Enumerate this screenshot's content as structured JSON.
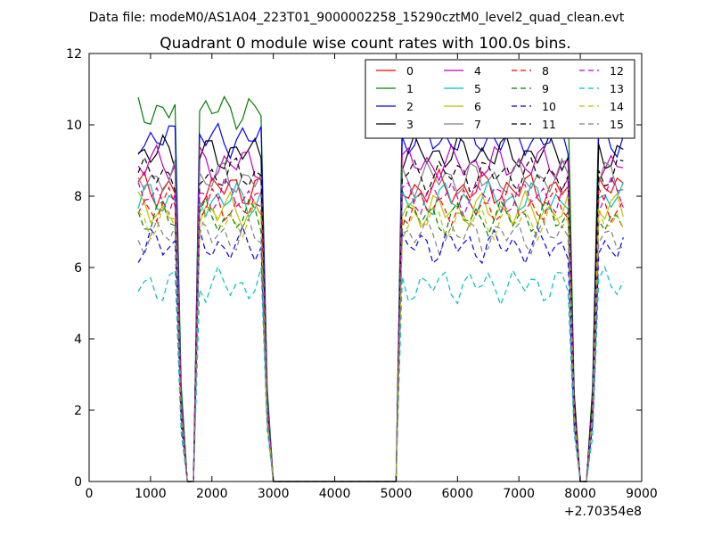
{
  "chart_data": {
    "type": "line",
    "suptitle": "Data file: modeM0/AS1A04_223T01_9000002258_15290cztM0_level2_quad_clean.evt",
    "title": "Quadrant 0 module wise count rates with 100.0s bins.",
    "xlabel": "",
    "ylabel": "",
    "x_offset_label": "+2.70354e8",
    "xlim": [
      0,
      9000
    ],
    "ylim": [
      0,
      12
    ],
    "xticks": [
      0,
      1000,
      2000,
      3000,
      4000,
      5000,
      6000,
      7000,
      8000,
      9000
    ],
    "yticks": [
      0,
      2,
      4,
      6,
      8,
      10,
      12
    ],
    "xtick_labels": [
      "0",
      "1000",
      "2000",
      "3000",
      "4000",
      "5000",
      "6000",
      "7000",
      "8000",
      "9000"
    ],
    "ytick_labels": [
      "0",
      "2",
      "4",
      "6",
      "8",
      "10",
      "12"
    ],
    "grid": false,
    "legend_position": "top-right",
    "legend_columns": 4,
    "x": [
      800,
      900,
      1000,
      1100,
      1200,
      1300,
      1400,
      1500,
      1600,
      1700,
      1800,
      1900,
      2000,
      2100,
      2200,
      2300,
      2400,
      2500,
      2600,
      2700,
      2800,
      2900,
      3000,
      3100,
      3200,
      3300,
      3400,
      3500,
      3600,
      3700,
      3800,
      3900,
      4000,
      4100,
      4200,
      4300,
      4400,
      4500,
      4600,
      4700,
      4800,
      4900,
      5000,
      5100,
      5200,
      5300,
      5400,
      5500,
      5600,
      5700,
      5800,
      5900,
      6000,
      6100,
      6200,
      6300,
      6400,
      6500,
      6600,
      6700,
      6800,
      6900,
      7000,
      7100,
      7200,
      7300,
      7400,
      7500,
      7600,
      7700,
      7800,
      7900,
      8000,
      8100,
      8200,
      8300,
      8400,
      8500,
      8600,
      8700
    ],
    "series": [
      {
        "name": "0",
        "color": "#ff0000",
        "dash": "solid",
        "base": 8.2
      },
      {
        "name": "1",
        "color": "#008000",
        "dash": "solid",
        "base": 10.4
      },
      {
        "name": "2",
        "color": "#0000ff",
        "dash": "solid",
        "base": 9.6
      },
      {
        "name": "3",
        "color": "#000000",
        "dash": "solid",
        "base": 9.2
      },
      {
        "name": "4",
        "color": "#bf00bf",
        "dash": "solid",
        "base": 8.9
      },
      {
        "name": "5",
        "color": "#00bfbf",
        "dash": "solid",
        "base": 7.9
      },
      {
        "name": "6",
        "color": "#bfbf00",
        "dash": "solid",
        "base": 7.6
      },
      {
        "name": "7",
        "color": "#808080",
        "dash": "solid",
        "base": 8.5
      },
      {
        "name": "8",
        "color": "#ff0000",
        "dash": "dashed",
        "base": 7.7
      },
      {
        "name": "9",
        "color": "#008000",
        "dash": "dashed",
        "base": 7.4
      },
      {
        "name": "10",
        "color": "#0000ff",
        "dash": "dashed",
        "base": 6.6
      },
      {
        "name": "11",
        "color": "#000000",
        "dash": "dashed",
        "base": 8.6
      },
      {
        "name": "12",
        "color": "#bf00bf",
        "dash": "dashed",
        "base": 8.0
      },
      {
        "name": "13",
        "color": "#00bfbf",
        "dash": "dashed",
        "base": 5.5
      },
      {
        "name": "14",
        "color": "#bfbf00",
        "dash": "dashed",
        "base": 7.3
      },
      {
        "name": "15",
        "color": "#808080",
        "dash": "dashed",
        "base": 6.9
      }
    ]
  }
}
